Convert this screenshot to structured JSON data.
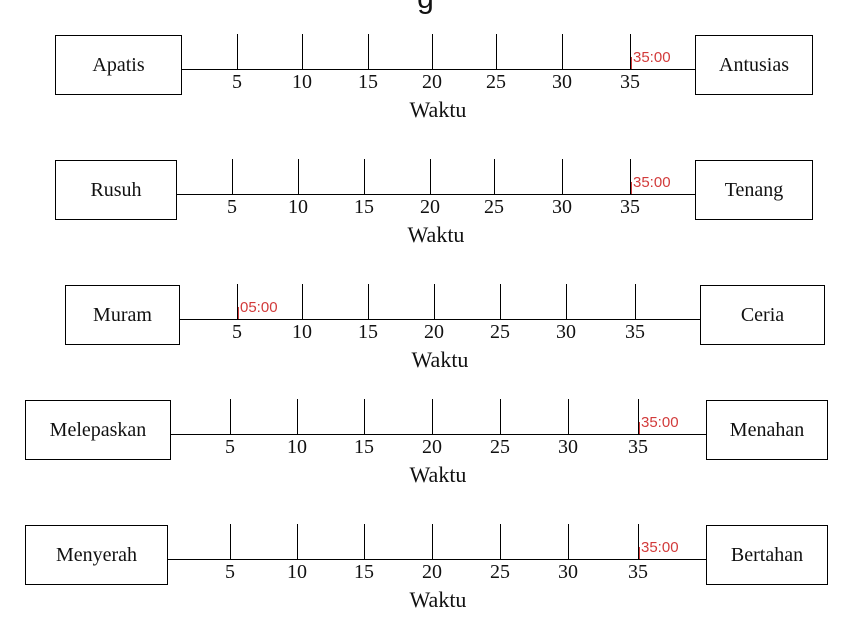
{
  "header_title": "g",
  "axis_title": "Waktu",
  "tick_labels": [
    "5",
    "10",
    "15",
    "20",
    "25",
    "30",
    "35"
  ],
  "marker_color": "#d23b3b",
  "scales": [
    {
      "left_label": "Apatis",
      "right_label": "Antusias",
      "marker_label": "35:00",
      "marker_value": 35
    },
    {
      "left_label": "Rusuh",
      "right_label": "Tenang",
      "marker_label": "35:00",
      "marker_value": 35
    },
    {
      "left_label": "Muram",
      "right_label": "Ceria",
      "marker_label": "05:00",
      "marker_value": 5
    },
    {
      "left_label": "Melepaskan",
      "right_label": "Menahan",
      "marker_label": "35:00",
      "marker_value": 35
    },
    {
      "left_label": "Menyerah",
      "right_label": "Bertahan",
      "marker_label": "35:00",
      "marker_value": 35
    }
  ]
}
